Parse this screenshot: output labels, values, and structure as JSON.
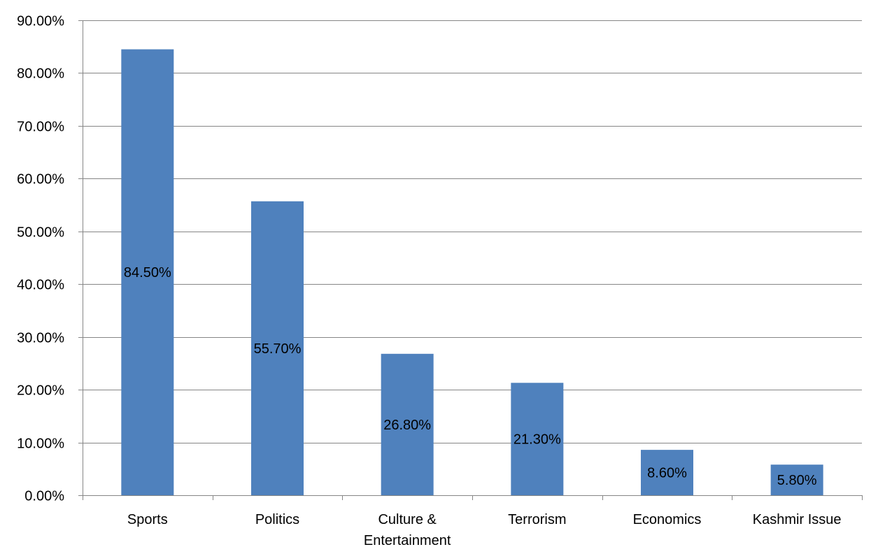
{
  "chart_data": {
    "type": "bar",
    "title": "",
    "xlabel": "",
    "ylabel": "",
    "categories": [
      "Sports",
      "Politics",
      "Culture & Entertainment",
      "Terrorism",
      "Economics",
      "Kashmir Issue"
    ],
    "category_lines": [
      [
        "Sports"
      ],
      [
        "Politics"
      ],
      [
        "Culture &",
        "Entertainment"
      ],
      [
        "Terrorism"
      ],
      [
        "Economics"
      ],
      [
        "Kashmir Issue"
      ]
    ],
    "values": [
      84.5,
      55.7,
      26.8,
      21.3,
      8.6,
      5.8
    ],
    "data_labels": [
      "84.50%",
      "55.70%",
      "26.80%",
      "21.30%",
      "8.60%",
      "5.80%"
    ],
    "ylim": [
      0,
      90
    ],
    "yticks": [
      0,
      10,
      20,
      30,
      40,
      50,
      60,
      70,
      80,
      90
    ],
    "ytick_labels": [
      "0.00%",
      "10.00%",
      "20.00%",
      "30.00%",
      "40.00%",
      "50.00%",
      "60.00%",
      "70.00%",
      "80.00%",
      "90.00%"
    ],
    "grid": true,
    "legend": "none",
    "bar_color": "#4F81BD",
    "grid_color": "#868686"
  }
}
